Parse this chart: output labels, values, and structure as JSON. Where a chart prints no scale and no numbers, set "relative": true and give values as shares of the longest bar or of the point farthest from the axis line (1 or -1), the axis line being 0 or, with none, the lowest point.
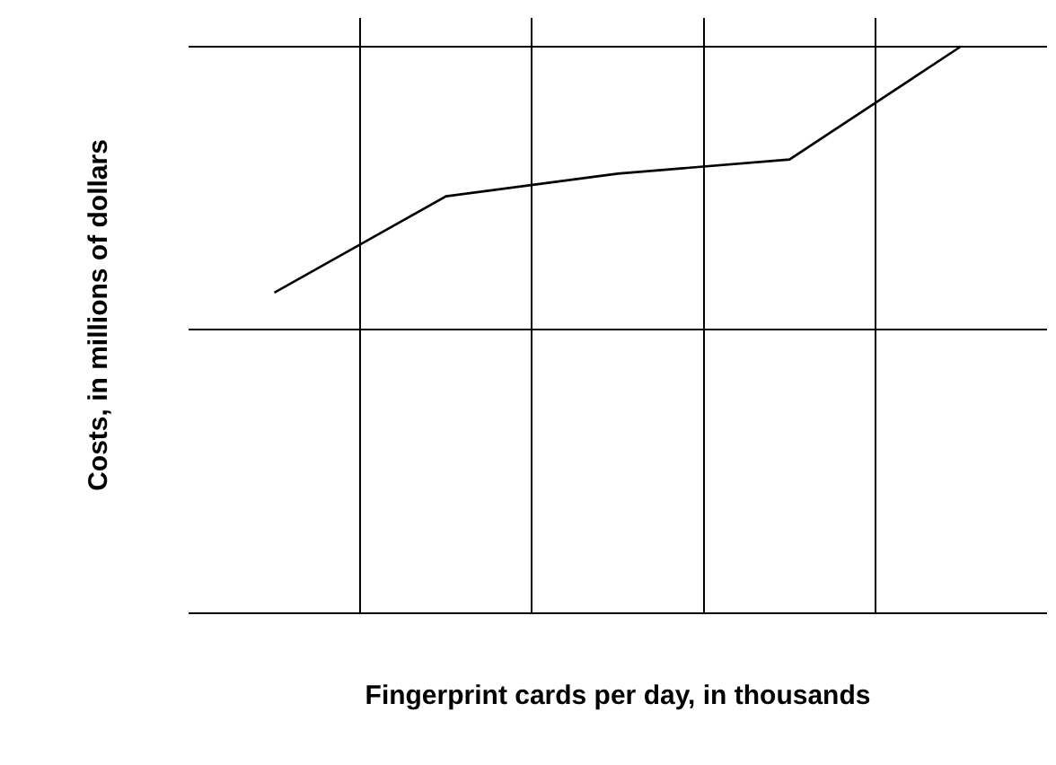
{
  "chart_data": {
    "type": "line",
    "relative": true,
    "xlabel": "Fingerprint cards per day, in thousands",
    "ylabel": "Costs, in millions of dollars",
    "categories": [
      null,
      null,
      null,
      null,
      null
    ],
    "series": [
      {
        "color": "#000000",
        "values": [
          0.565,
          0.735,
          0.775,
          0.8,
          1.0
        ]
      }
    ],
    "grid": true,
    "marker": "none",
    "line_style": "solid"
  }
}
